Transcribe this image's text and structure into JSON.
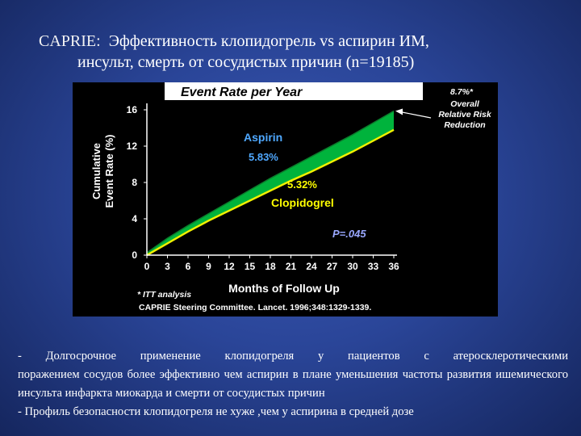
{
  "slide": {
    "title_lead": "CAPRIE:",
    "title_line1": "Эффективность клопидогрель vs аспирин ИМ,",
    "title_line2": "инсульт, смерть от сосудистых причин (n=19185)",
    "bullets": [
      "- Долгосрочное   применение клопидогреля у пациентов с   атеросклеротическими",
      "поражением сосудов более эффективно  чем аспирин в плане  уменьшения  частоты развития ишемического инсульта инфаркта миокарда и смерти от сосудистых причин",
      "- Профиль безопасности клопидогреля не хуже ,чем у аспирина в средней дозе"
    ]
  },
  "chart_data": {
    "type": "area",
    "title": "Event Rate per Year",
    "xlabel": "Months of Follow Up",
    "ylabel_line1": "Cumulative",
    "ylabel_line2": "Event Rate (%)",
    "x_ticks": [
      "0",
      "3",
      "6",
      "9",
      "12",
      "15",
      "18",
      "21",
      "24",
      "27",
      "30",
      "33",
      "36"
    ],
    "y_ticks": [
      "0",
      "4",
      "8",
      "12",
      "16"
    ],
    "xlim": [
      0,
      36
    ],
    "ylim": [
      0,
      16
    ],
    "x": [
      0,
      3,
      6,
      9,
      12,
      15,
      18,
      21,
      24,
      27,
      30,
      33,
      36
    ],
    "series": [
      {
        "name": "Aspirin",
        "rate_label": "5.83%",
        "color": "#00b33c",
        "values": [
          0,
          1.6,
          3.0,
          4.3,
          5.6,
          6.9,
          8.2,
          9.4,
          10.6,
          11.8,
          13.0,
          14.3,
          15.6
        ]
      },
      {
        "name": "Clopidogrel",
        "rate_label": "5.32%",
        "color": "#f0f000",
        "values": [
          0,
          1.3,
          2.6,
          3.8,
          4.9,
          6.0,
          7.1,
          8.2,
          9.2,
          10.3,
          11.4,
          12.6,
          13.8
        ]
      }
    ],
    "annotations": {
      "rrr_value": "8.7%*",
      "rrr_line1": "Overall",
      "rrr_line2": "Relative Risk",
      "rrr_line3": "Reduction",
      "p_value": "P=.045",
      "footnote": "*  ITT analysis",
      "citation": "CAPRIE Steering Committee. Lancet. 1996;348:1329-1339."
    },
    "colors": {
      "background": "#000000",
      "title_bg": "#ffffff",
      "aspirin_label": "#4fa8ff",
      "clopidogrel_label": "#ffff00",
      "p_value": "#9aa8ff"
    }
  }
}
